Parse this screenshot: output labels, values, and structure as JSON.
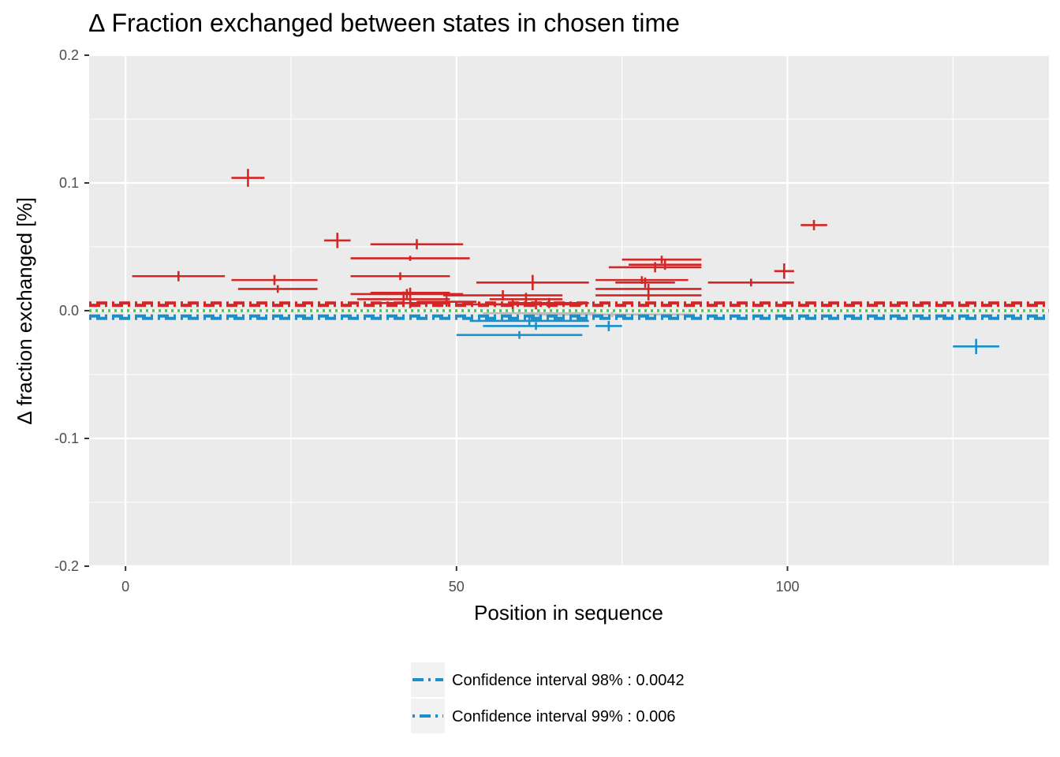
{
  "chart_data": {
    "type": "scatter",
    "title": "∆ Fraction exchanged between states in chosen time",
    "xlabel": "Position in sequence",
    "ylabel": "∆ fraction exchanged [%]",
    "xlim": [
      -5.5,
      139.5
    ],
    "ylim": [
      -0.2,
      0.2
    ],
    "x_ticks": [
      0,
      50,
      100
    ],
    "y_ticks": [
      0.2,
      0.1,
      0.0,
      -0.1,
      -0.2
    ],
    "y_tick_labels": [
      "0.2",
      "0.1",
      "0.0",
      "-0.1",
      "-0.2"
    ],
    "grid": true,
    "colors": {
      "panel": "#ebebeb",
      "positive": "#d32626",
      "negative": "#1a8fc9",
      "neutral": "#bdbdbd",
      "zero_line": "#1fe01f"
    },
    "thresholds": [
      {
        "label": "Confidence interval 98%",
        "value": 0.0042,
        "style": "longdash-dot"
      },
      {
        "label": "Confidence interval 99%",
        "value": 0.006,
        "style": "dot-longdash"
      }
    ],
    "legend": {
      "position": "bottom",
      "items": [
        {
          "label": "Confidence interval 98% : 0.0042",
          "style": "longdash-dot",
          "color": "#1a8fc9"
        },
        {
          "label": "Confidence interval 99% : 0.006",
          "style": "dot-longdash",
          "color": "#1a8fc9"
        }
      ]
    },
    "series": [
      {
        "color": "#d32626",
        "points": [
          {
            "start": 1,
            "end": 15,
            "y": 0.027,
            "err": 0.004
          },
          {
            "start": 16,
            "end": 21,
            "y": 0.104,
            "err": 0.007
          },
          {
            "start": 16,
            "end": 29,
            "y": 0.024,
            "err": 0.004
          },
          {
            "start": 17,
            "end": 29,
            "y": 0.017,
            "err": 0.003
          },
          {
            "start": 30,
            "end": 34,
            "y": 0.055,
            "err": 0.006
          },
          {
            "start": 34,
            "end": 52,
            "y": 0.041,
            "err": 0.002
          },
          {
            "start": 34,
            "end": 49,
            "y": 0.027,
            "err": 0.003
          },
          {
            "start": 34,
            "end": 51,
            "y": 0.013,
            "err": 0.004
          },
          {
            "start": 35,
            "end": 49,
            "y": 0.009,
            "err": 0.006
          },
          {
            "start": 37,
            "end": 51,
            "y": 0.052,
            "err": 0.004
          },
          {
            "start": 37,
            "end": 49,
            "y": 0.014,
            "err": 0.004
          },
          {
            "start": 38,
            "end": 48,
            "y": 0.006,
            "err": 0.004
          },
          {
            "start": 44,
            "end": 53,
            "y": 0.007,
            "err": 0.004
          },
          {
            "start": 48,
            "end": 66,
            "y": 0.012,
            "err": 0.004
          },
          {
            "start": 50,
            "end": 67,
            "y": 0.005,
            "err": 0.004
          },
          {
            "start": 53,
            "end": 70,
            "y": 0.022,
            "err": 0.006
          },
          {
            "start": 55,
            "end": 66,
            "y": 0.009,
            "err": 0.005
          },
          {
            "start": 55,
            "end": 69,
            "y": 0.005,
            "err": 0.004
          },
          {
            "start": 58,
            "end": 70,
            "y": 0.006,
            "err": 0.004
          },
          {
            "start": 71,
            "end": 85,
            "y": 0.024,
            "err": 0.003
          },
          {
            "start": 71,
            "end": 87,
            "y": 0.017,
            "err": 0.004
          },
          {
            "start": 71,
            "end": 87,
            "y": 0.012,
            "err": 0.004
          },
          {
            "start": 73,
            "end": 87,
            "y": 0.034,
            "err": 0.004
          },
          {
            "start": 74,
            "end": 83,
            "y": 0.022,
            "err": 0.004
          },
          {
            "start": 75,
            "end": 87,
            "y": 0.04,
            "err": 0.003
          },
          {
            "start": 76,
            "end": 87,
            "y": 0.036,
            "err": 0.004
          },
          {
            "start": 88,
            "end": 101,
            "y": 0.022,
            "err": 0.003
          },
          {
            "start": 98,
            "end": 101,
            "y": 0.031,
            "err": 0.006
          },
          {
            "start": 102,
            "end": 106,
            "y": 0.067,
            "err": 0.004
          }
        ]
      },
      {
        "color": "#1a8fc9",
        "points": [
          {
            "start": 50,
            "end": 69,
            "y": -0.019,
            "err": 0.003
          },
          {
            "start": 52,
            "end": 70,
            "y": -0.008,
            "err": 0.004
          },
          {
            "start": 54,
            "end": 70,
            "y": -0.012,
            "err": 0.003
          },
          {
            "start": 71,
            "end": 75,
            "y": -0.012,
            "err": 0.004
          },
          {
            "start": 125,
            "end": 132,
            "y": -0.028,
            "err": 0.006
          }
        ]
      },
      {
        "color": "#bdbdbd",
        "points": [
          {
            "start": 54,
            "end": 71,
            "y": -0.002,
            "err": 0.003
          },
          {
            "start": 61,
            "end": 86,
            "y": -0.003,
            "err": 0.002
          }
        ]
      }
    ]
  }
}
